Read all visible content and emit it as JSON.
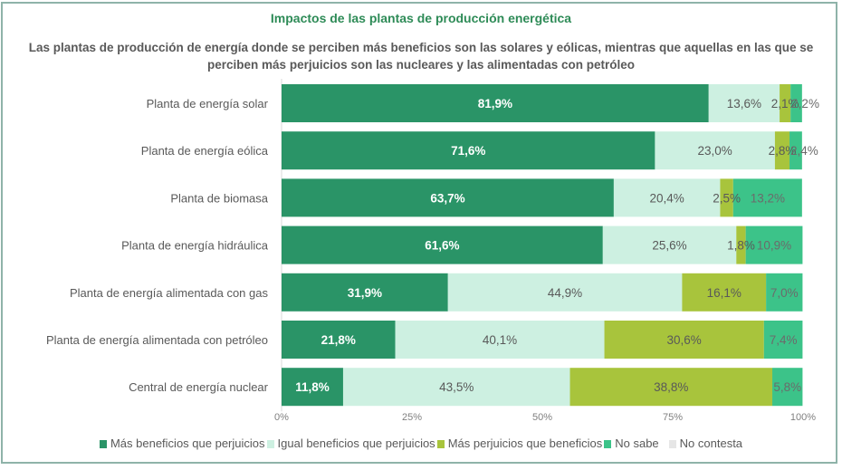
{
  "chart_data": {
    "type": "bar",
    "orientation": "horizontal",
    "stacked": true,
    "title": "Impactos de las plantas de producción energética",
    "subtitle": "Las plantas de producción de energía donde se perciben más beneficios son las solares y eólicas, mientras que aquellas en las que se perciben más perjuicios son las nucleares y las alimentadas con petróleo",
    "categories": [
      "Planta de energía solar",
      "Planta de energía eólica",
      "Planta de biomasa",
      "Planta de energía hidráulica",
      "Planta de energía alimentada con gas",
      "Planta de energía alimentada con petróleo",
      "Central de energía nuclear"
    ],
    "series": [
      {
        "name": "Más beneficios que perjuicios",
        "color": "#2a9467",
        "label_color": "#ffffff",
        "bold": true,
        "values": [
          81.9,
          71.6,
          63.7,
          61.6,
          31.9,
          21.8,
          11.8
        ],
        "labels": [
          "81,9%",
          "71,6%",
          "63,7%",
          "61,6%",
          "31,9%",
          "21,8%",
          "11,8%"
        ]
      },
      {
        "name": "Igual beneficios que perjuicios",
        "color": "#cdf0e1",
        "label_color": "#595959",
        "bold": false,
        "values": [
          13.6,
          23.0,
          20.4,
          25.6,
          44.9,
          40.1,
          43.5
        ],
        "labels": [
          "13,6%",
          "23,0%",
          "20,4%",
          "25,6%",
          "44,9%",
          "40,1%",
          "43,5%"
        ]
      },
      {
        "name": "Más perjuicios que beneficios",
        "color": "#a8c43c",
        "label_color": "#595959",
        "bold": false,
        "values": [
          2.1,
          2.8,
          2.5,
          1.8,
          16.1,
          30.6,
          38.8
        ],
        "labels": [
          "2,1%",
          "2,8%",
          "2,5%",
          "1,8%",
          "16,1%",
          "30,6%",
          "38,8%"
        ]
      },
      {
        "name": "No sabe",
        "color": "#3cc389",
        "label_color": "#6b6b6b",
        "bold": false,
        "values": [
          2.2,
          2.4,
          13.2,
          10.9,
          7.0,
          7.4,
          5.8
        ],
        "labels": [
          "2,2%",
          "2,4%",
          "13,2%",
          "10,9%",
          "7,0%",
          "7,4%",
          "5,8%"
        ]
      },
      {
        "name": "No contesta",
        "color": "#e6e6e6",
        "label_color": "#595959",
        "bold": false,
        "values": [
          0,
          0,
          0,
          0,
          0,
          0,
          0
        ],
        "labels": [
          "",
          "",
          "",
          "",
          "",
          "",
          ""
        ]
      }
    ],
    "xlim": [
      0,
      100
    ],
    "xticks": [
      "0%",
      "25%",
      "50%",
      "75%",
      "100%"
    ],
    "xtick_values": [
      0,
      25,
      50,
      75,
      100
    ],
    "xlabel": "",
    "ylabel": "",
    "grid": false,
    "legend_position": "bottom"
  }
}
